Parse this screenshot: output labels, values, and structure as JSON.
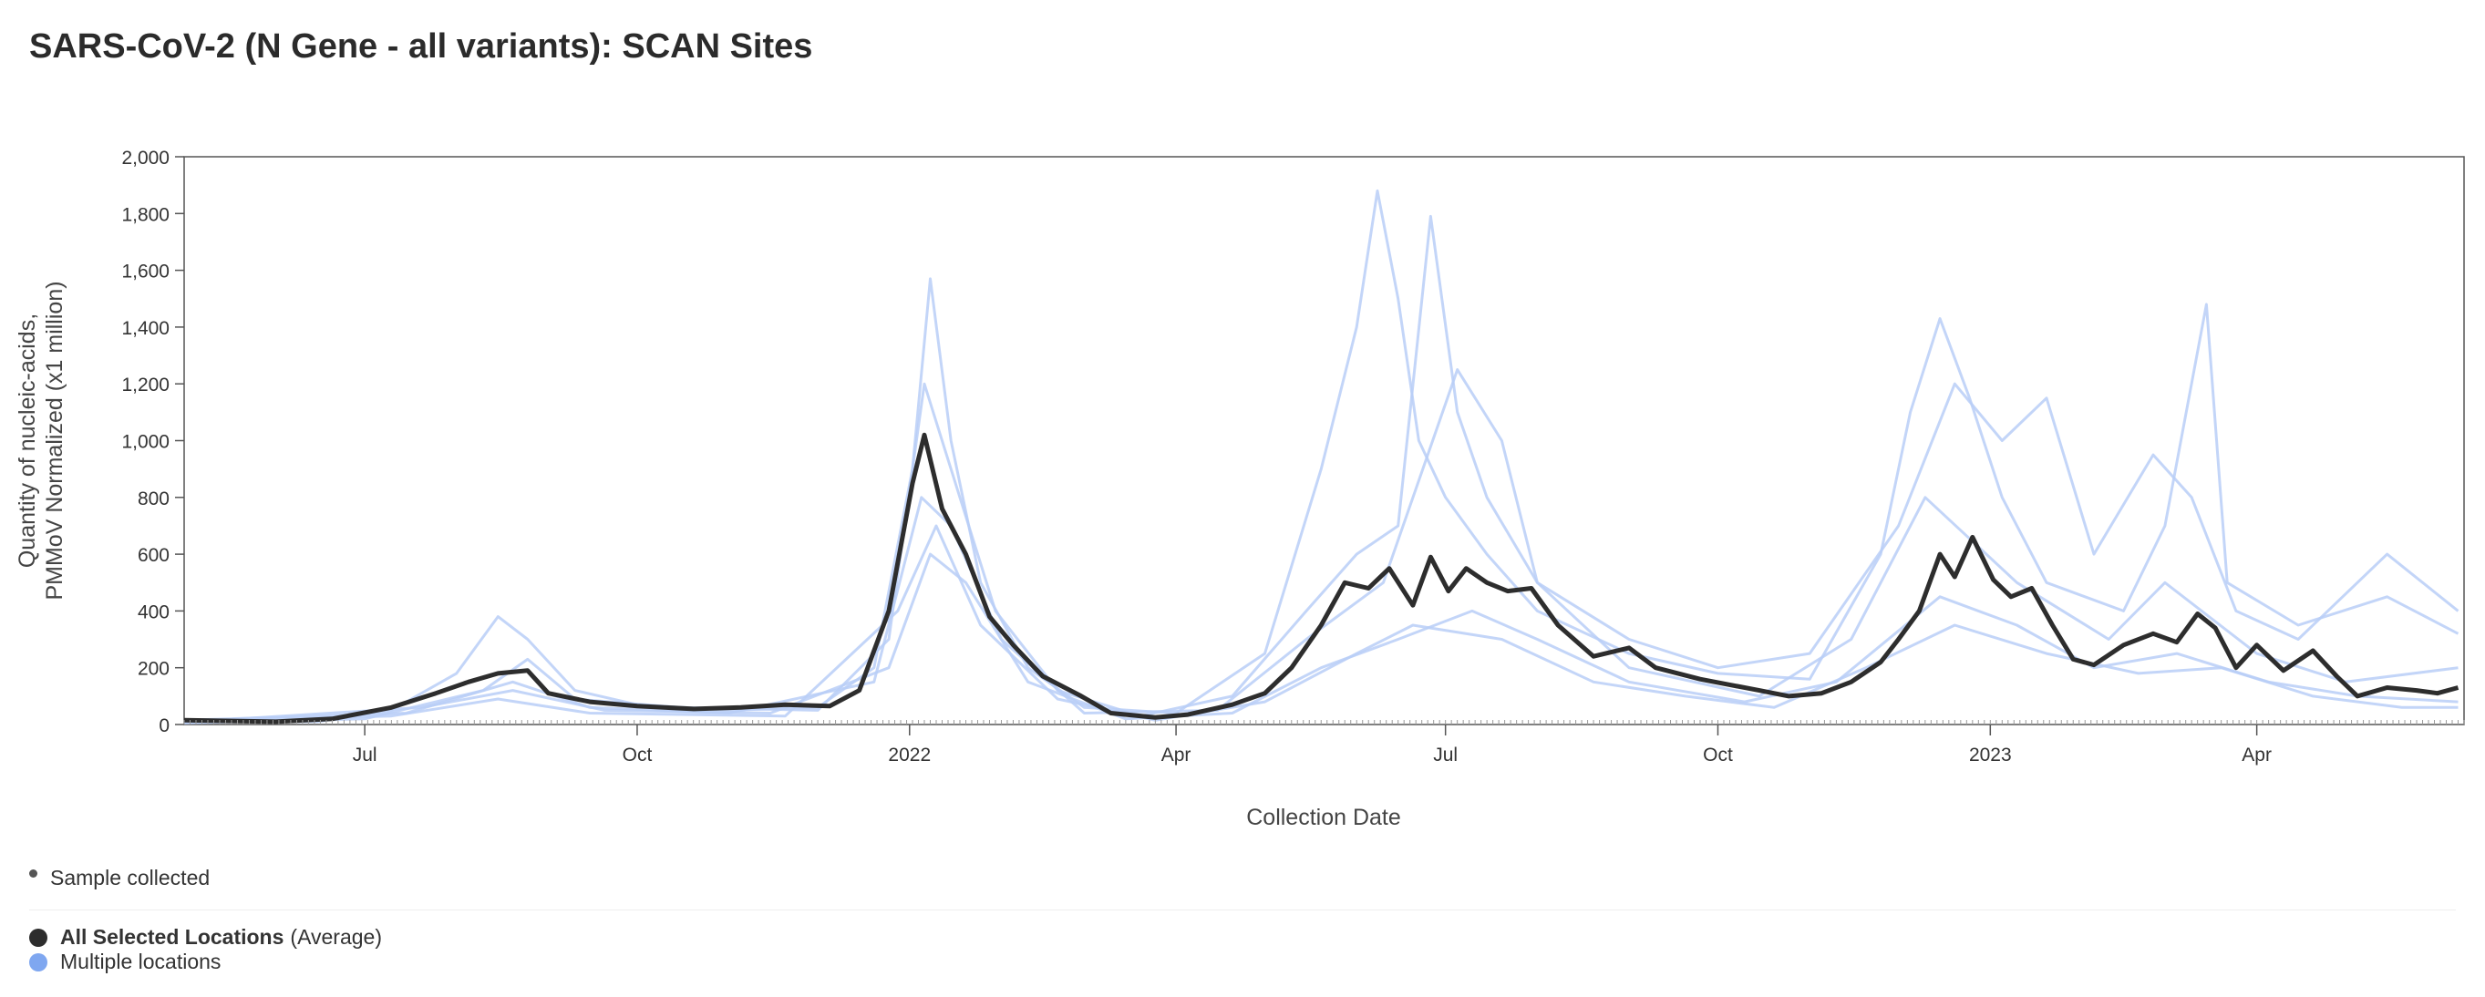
{
  "title": "SARS-CoV-2 (N Gene - all variants): SCAN Sites",
  "legend": {
    "sample": "Sample collected",
    "average_label": "All Selected Locations",
    "average_suffix": "(Average)",
    "multiple_label": "Multiple locations"
  },
  "colors": {
    "average": "#2d2d2d",
    "locations": "#b8cef7",
    "location_dot": "#7fa7f0",
    "axis": "#333333"
  },
  "chart_data": {
    "type": "line",
    "xlabel": "Collection Date",
    "ylabel": [
      "Quantity of nucleic-acids,",
      "PMMoV Normalized (x1 million)"
    ],
    "xlim": [
      "2021-05-01",
      "2023-06-10"
    ],
    "ylim": [
      0,
      2000
    ],
    "y_ticks": [
      0,
      200,
      400,
      600,
      800,
      1000,
      1200,
      1400,
      1600,
      1800,
      2000
    ],
    "y_tick_labels": [
      "0",
      "200",
      "400",
      "600",
      "800",
      "1,000",
      "1,200",
      "1,400",
      "1,600",
      "1,800",
      "2,000"
    ],
    "x_ticks": [
      {
        "date": "2021-07-01",
        "label": "Jul"
      },
      {
        "date": "2021-10-01",
        "label": "Oct"
      },
      {
        "date": "2022-01-01",
        "label": "2022"
      },
      {
        "date": "2022-04-01",
        "label": "Apr"
      },
      {
        "date": "2022-07-01",
        "label": "Jul"
      },
      {
        "date": "2022-10-01",
        "label": "Oct"
      },
      {
        "date": "2023-01-01",
        "label": "2023"
      },
      {
        "date": "2023-04-01",
        "label": "Apr"
      }
    ],
    "average": {
      "name": "All Selected Locations",
      "points": [
        [
          "2021-05-01",
          15
        ],
        [
          "2021-06-01",
          10
        ],
        [
          "2021-06-20",
          20
        ],
        [
          "2021-07-10",
          60
        ],
        [
          "2021-07-25",
          110
        ],
        [
          "2021-08-05",
          150
        ],
        [
          "2021-08-15",
          180
        ],
        [
          "2021-08-25",
          190
        ],
        [
          "2021-09-01",
          110
        ],
        [
          "2021-09-15",
          80
        ],
        [
          "2021-10-01",
          65
        ],
        [
          "2021-10-20",
          55
        ],
        [
          "2021-11-05",
          60
        ],
        [
          "2021-11-20",
          70
        ],
        [
          "2021-12-05",
          65
        ],
        [
          "2021-12-15",
          120
        ],
        [
          "2021-12-25",
          400
        ],
        [
          "2022-01-02",
          850
        ],
        [
          "2022-01-06",
          1020
        ],
        [
          "2022-01-12",
          760
        ],
        [
          "2022-01-20",
          600
        ],
        [
          "2022-01-28",
          380
        ],
        [
          "2022-02-05",
          280
        ],
        [
          "2022-02-15",
          170
        ],
        [
          "2022-02-28",
          100
        ],
        [
          "2022-03-10",
          40
        ],
        [
          "2022-03-25",
          25
        ],
        [
          "2022-04-05",
          35
        ],
        [
          "2022-04-20",
          70
        ],
        [
          "2022-05-01",
          110
        ],
        [
          "2022-05-10",
          200
        ],
        [
          "2022-05-20",
          350
        ],
        [
          "2022-05-28",
          500
        ],
        [
          "2022-06-05",
          480
        ],
        [
          "2022-06-12",
          550
        ],
        [
          "2022-06-20",
          420
        ],
        [
          "2022-06-26",
          590
        ],
        [
          "2022-07-02",
          470
        ],
        [
          "2022-07-08",
          550
        ],
        [
          "2022-07-15",
          500
        ],
        [
          "2022-07-22",
          470
        ],
        [
          "2022-07-30",
          480
        ],
        [
          "2022-08-08",
          350
        ],
        [
          "2022-08-20",
          240
        ],
        [
          "2022-09-01",
          270
        ],
        [
          "2022-09-10",
          200
        ],
        [
          "2022-09-25",
          160
        ],
        [
          "2022-10-05",
          140
        ],
        [
          "2022-10-15",
          120
        ],
        [
          "2022-10-25",
          100
        ],
        [
          "2022-11-05",
          110
        ],
        [
          "2022-11-15",
          150
        ],
        [
          "2022-11-25",
          220
        ],
        [
          "2022-12-01",
          300
        ],
        [
          "2022-12-08",
          400
        ],
        [
          "2022-12-15",
          600
        ],
        [
          "2022-12-20",
          520
        ],
        [
          "2022-12-26",
          660
        ],
        [
          "2023-01-02",
          510
        ],
        [
          "2023-01-08",
          450
        ],
        [
          "2023-01-15",
          480
        ],
        [
          "2023-01-22",
          350
        ],
        [
          "2023-01-29",
          230
        ],
        [
          "2023-02-05",
          210
        ],
        [
          "2023-02-15",
          280
        ],
        [
          "2023-02-25",
          320
        ],
        [
          "2023-03-05",
          290
        ],
        [
          "2023-03-12",
          390
        ],
        [
          "2023-03-18",
          340
        ],
        [
          "2023-03-25",
          200
        ],
        [
          "2023-04-01",
          280
        ],
        [
          "2023-04-10",
          190
        ],
        [
          "2023-04-20",
          260
        ],
        [
          "2023-04-28",
          170
        ],
        [
          "2023-05-05",
          100
        ],
        [
          "2023-05-15",
          130
        ],
        [
          "2023-05-25",
          120
        ],
        [
          "2023-06-01",
          110
        ],
        [
          "2023-06-08",
          130
        ]
      ]
    },
    "locations": [
      {
        "name": "Multiple locations",
        "points": [
          [
            "2021-05-01",
            10
          ],
          [
            "2021-06-15",
            10
          ],
          [
            "2021-07-10",
            50
          ],
          [
            "2021-08-01",
            180
          ],
          [
            "2021-08-15",
            380
          ],
          [
            "2021-08-25",
            300
          ],
          [
            "2021-09-10",
            120
          ],
          [
            "2021-10-01",
            70
          ],
          [
            "2021-11-01",
            50
          ],
          [
            "2021-12-01",
            60
          ],
          [
            "2021-12-20",
            200
          ],
          [
            "2022-01-02",
            900
          ],
          [
            "2022-01-08",
            1570
          ],
          [
            "2022-01-15",
            1000
          ],
          [
            "2022-01-25",
            500
          ],
          [
            "2022-02-10",
            200
          ],
          [
            "2022-03-01",
            60
          ],
          [
            "2022-04-01",
            40
          ],
          [
            "2022-05-01",
            250
          ],
          [
            "2022-05-20",
            900
          ],
          [
            "2022-06-01",
            1400
          ],
          [
            "2022-06-08",
            1880
          ],
          [
            "2022-06-15",
            1500
          ],
          [
            "2022-06-22",
            1000
          ],
          [
            "2022-07-01",
            800
          ],
          [
            "2022-07-15",
            600
          ],
          [
            "2022-08-01",
            400
          ],
          [
            "2022-09-01",
            250
          ],
          [
            "2022-10-01",
            180
          ],
          [
            "2022-11-01",
            160
          ],
          [
            "2022-11-25",
            600
          ],
          [
            "2022-12-05",
            1100
          ],
          [
            "2022-12-15",
            1430
          ],
          [
            "2022-12-25",
            1150
          ],
          [
            "2023-01-05",
            800
          ],
          [
            "2023-01-20",
            500
          ],
          [
            "2023-02-15",
            400
          ],
          [
            "2023-03-01",
            700
          ],
          [
            "2023-03-15",
            1480
          ],
          [
            "2023-03-22",
            500
          ],
          [
            "2023-04-15",
            350
          ],
          [
            "2023-05-15",
            450
          ],
          [
            "2023-06-08",
            320
          ]
        ]
      },
      {
        "name": "Multiple locations",
        "points": [
          [
            "2021-05-01",
            5
          ],
          [
            "2021-07-01",
            20
          ],
          [
            "2021-08-10",
            120
          ],
          [
            "2021-08-25",
            230
          ],
          [
            "2021-09-10",
            90
          ],
          [
            "2021-10-15",
            60
          ],
          [
            "2021-12-01",
            50
          ],
          [
            "2021-12-25",
            300
          ],
          [
            "2022-01-06",
            1200
          ],
          [
            "2022-01-15",
            900
          ],
          [
            "2022-01-30",
            400
          ],
          [
            "2022-02-20",
            120
          ],
          [
            "2022-03-20",
            30
          ],
          [
            "2022-04-20",
            100
          ],
          [
            "2022-05-15",
            400
          ],
          [
            "2022-06-01",
            600
          ],
          [
            "2022-06-15",
            700
          ],
          [
            "2022-06-26",
            1790
          ],
          [
            "2022-07-05",
            1100
          ],
          [
            "2022-07-15",
            800
          ],
          [
            "2022-08-01",
            500
          ],
          [
            "2022-09-01",
            300
          ],
          [
            "2022-10-01",
            200
          ],
          [
            "2022-11-01",
            250
          ],
          [
            "2022-12-01",
            700
          ],
          [
            "2022-12-20",
            1200
          ],
          [
            "2023-01-05",
            1000
          ],
          [
            "2023-01-20",
            1150
          ],
          [
            "2023-02-05",
            600
          ],
          [
            "2023-02-25",
            950
          ],
          [
            "2023-03-10",
            800
          ],
          [
            "2023-03-25",
            400
          ],
          [
            "2023-04-15",
            300
          ],
          [
            "2023-05-15",
            600
          ],
          [
            "2023-06-08",
            400
          ]
        ]
      },
      {
        "name": "Multiple locations",
        "points": [
          [
            "2021-05-01",
            15
          ],
          [
            "2021-07-15",
            40
          ],
          [
            "2021-08-20",
            150
          ],
          [
            "2021-09-15",
            60
          ],
          [
            "2021-11-01",
            40
          ],
          [
            "2021-12-20",
            150
          ],
          [
            "2022-01-05",
            800
          ],
          [
            "2022-01-15",
            700
          ],
          [
            "2022-02-01",
            300
          ],
          [
            "2022-03-01",
            40
          ],
          [
            "2022-04-15",
            50
          ],
          [
            "2022-05-15",
            300
          ],
          [
            "2022-06-10",
            500
          ],
          [
            "2022-07-05",
            1250
          ],
          [
            "2022-07-20",
            1000
          ],
          [
            "2022-08-01",
            500
          ],
          [
            "2022-09-01",
            200
          ],
          [
            "2022-10-15",
            100
          ],
          [
            "2022-11-15",
            300
          ],
          [
            "2022-12-10",
            800
          ],
          [
            "2023-01-10",
            500
          ],
          [
            "2023-02-10",
            300
          ],
          [
            "2023-03-01",
            500
          ],
          [
            "2023-04-01",
            250
          ],
          [
            "2023-05-01",
            150
          ],
          [
            "2023-06-08",
            200
          ]
        ]
      },
      {
        "name": "Multiple locations",
        "points": [
          [
            "2021-05-01",
            8
          ],
          [
            "2021-07-20",
            60
          ],
          [
            "2021-08-20",
            120
          ],
          [
            "2021-09-20",
            50
          ],
          [
            "2021-11-15",
            40
          ],
          [
            "2021-12-25",
            200
          ],
          [
            "2022-01-08",
            600
          ],
          [
            "2022-01-20",
            500
          ],
          [
            "2022-02-10",
            150
          ],
          [
            "2022-03-15",
            20
          ],
          [
            "2022-04-20",
            40
          ],
          [
            "2022-05-20",
            200
          ],
          [
            "2022-06-15",
            300
          ],
          [
            "2022-07-10",
            400
          ],
          [
            "2022-08-01",
            300
          ],
          [
            "2022-09-01",
            150
          ],
          [
            "2022-10-10",
            80
          ],
          [
            "2022-11-10",
            150
          ],
          [
            "2022-12-15",
            450
          ],
          [
            "2023-01-10",
            350
          ],
          [
            "2023-02-05",
            200
          ],
          [
            "2023-03-05",
            250
          ],
          [
            "2023-04-05",
            150
          ],
          [
            "2023-05-05",
            100
          ],
          [
            "2023-06-08",
            80
          ]
        ]
      },
      {
        "name": "Multiple locations",
        "points": [
          [
            "2021-05-01",
            12
          ],
          [
            "2021-07-10",
            30
          ],
          [
            "2021-08-15",
            90
          ],
          [
            "2021-09-15",
            40
          ],
          [
            "2021-11-20",
            30
          ],
          [
            "2021-12-28",
            400
          ],
          [
            "2022-01-10",
            700
          ],
          [
            "2022-01-25",
            350
          ],
          [
            "2022-02-20",
            90
          ],
          [
            "2022-03-25",
            15
          ],
          [
            "2022-05-01",
            80
          ],
          [
            "2022-06-01",
            250
          ],
          [
            "2022-06-20",
            350
          ],
          [
            "2022-07-20",
            300
          ],
          [
            "2022-08-20",
            150
          ],
          [
            "2022-09-20",
            100
          ],
          [
            "2022-10-20",
            60
          ],
          [
            "2022-11-20",
            200
          ],
          [
            "2022-12-20",
            350
          ],
          [
            "2023-01-20",
            250
          ],
          [
            "2023-02-20",
            180
          ],
          [
            "2023-03-20",
            200
          ],
          [
            "2023-04-20",
            100
          ],
          [
            "2023-05-20",
            60
          ],
          [
            "2023-06-08",
            60
          ]
        ]
      }
    ]
  }
}
